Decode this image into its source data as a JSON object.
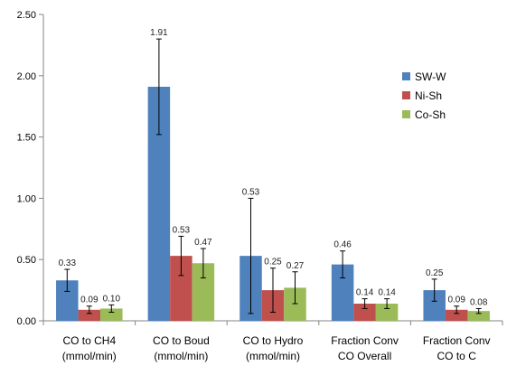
{
  "chart_data": {
    "type": "bar",
    "title": "",
    "xlabel": "",
    "ylabel": "",
    "ylim": [
      0,
      2.5
    ],
    "yticks": [
      "0.00",
      "0.50",
      "1.00",
      "1.50",
      "2.00",
      "2.50"
    ],
    "categories": [
      [
        "CO to CH4",
        "(mmol/min)"
      ],
      [
        "CO to Boud",
        "(mmol/min)"
      ],
      [
        "CO to Hydro",
        "(mmol/min)"
      ],
      [
        "Fraction Conv",
        "CO Overall"
      ],
      [
        "Fraction Conv",
        "CO to C"
      ]
    ],
    "series": [
      {
        "name": "SW-W",
        "color": "#4f81bd",
        "values": [
          0.33,
          1.91,
          0.53,
          0.46,
          0.25
        ],
        "labels": [
          "0.33",
          "1.91",
          "0.53",
          "0.46",
          "0.25"
        ],
        "errors": [
          0.09,
          0.39,
          0.47,
          0.11,
          0.09
        ]
      },
      {
        "name": "Ni-Sh",
        "color": "#c0504d",
        "values": [
          0.09,
          0.53,
          0.25,
          0.14,
          0.09
        ],
        "labels": [
          "0.09",
          "0.53",
          "0.25",
          "0.14",
          "0.09"
        ],
        "errors": [
          0.03,
          0.16,
          0.18,
          0.04,
          0.03
        ]
      },
      {
        "name": "Co-Sh",
        "color": "#9bbb59",
        "values": [
          0.1,
          0.47,
          0.27,
          0.14,
          0.08
        ],
        "labels": [
          "0.10",
          "0.47",
          "0.27",
          "0.14",
          "0.08"
        ],
        "errors": [
          0.03,
          0.12,
          0.13,
          0.04,
          0.02
        ]
      }
    ],
    "grid": false,
    "legend": "right"
  }
}
